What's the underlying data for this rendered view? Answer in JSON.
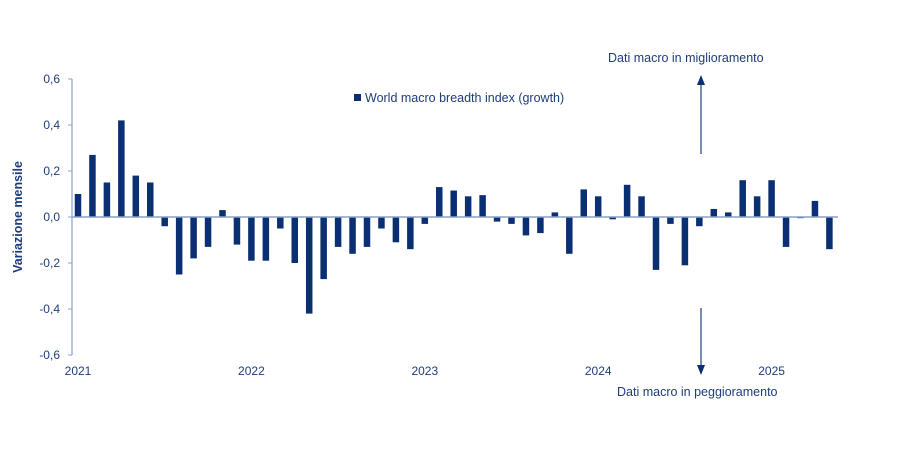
{
  "chart_data": {
    "type": "bar",
    "title": "",
    "xlabel": "",
    "ylabel": "Variazione mensile",
    "ylim": [
      -0.6,
      0.6
    ],
    "yticks": [
      0.6,
      0.4,
      0.2,
      0.0,
      -0.2,
      -0.4,
      -0.6
    ],
    "ytick_labels": [
      "0,6",
      "0,4",
      "0,2",
      "0,0",
      "-0,2",
      "-0,4",
      "-0,6"
    ],
    "xtick_labels": [
      "2021",
      "2022",
      "2023",
      "2024",
      "2025"
    ],
    "xtick_index": [
      0,
      12,
      24,
      36,
      48
    ],
    "grid": false,
    "legend": {
      "placement": "top-center",
      "entries": [
        "World macro breadth index (growth)"
      ]
    },
    "series": [
      {
        "name": "World macro breadth index (growth)",
        "color": "#0b2f73",
        "values": [
          0.1,
          0.27,
          0.15,
          0.42,
          0.18,
          0.15,
          -0.04,
          -0.25,
          -0.18,
          -0.13,
          0.03,
          -0.12,
          -0.19,
          -0.19,
          -0.05,
          -0.2,
          -0.42,
          -0.27,
          -0.13,
          -0.16,
          -0.13,
          -0.05,
          -0.11,
          -0.14,
          -0.03,
          0.13,
          0.115,
          0.09,
          0.095,
          -0.02,
          -0.03,
          -0.08,
          -0.07,
          0.02,
          -0.16,
          0.12,
          0.09,
          -0.01,
          0.14,
          0.09,
          -0.23,
          -0.03,
          -0.21,
          -0.04,
          0.035,
          0.02,
          0.16,
          0.09,
          0.16,
          -0.13,
          -0.005,
          0.07,
          -0.14
        ]
      }
    ],
    "annotations": {
      "up": "Dati macro in miglioramento",
      "down": "Dati macro in peggioramento"
    }
  },
  "colors": {
    "bar": "#0b2f73",
    "axis": "#8aa0c8",
    "text": "#1d3d7a"
  }
}
